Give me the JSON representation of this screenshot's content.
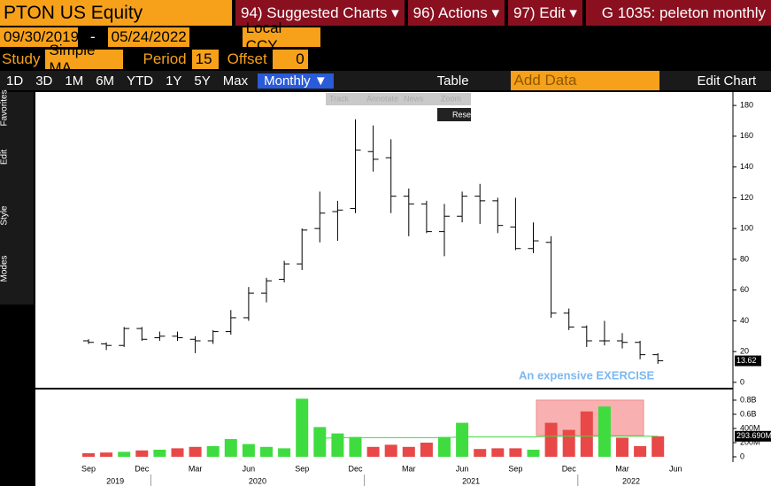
{
  "toolbar": {
    "security": "PTON US Equity",
    "menus": [
      "94) Suggested Charts ▾",
      "96) Actions ▾",
      "97) Edit ▾"
    ],
    "page_title": "G 1035: peleton monthly",
    "start_date": "09/30/2019",
    "end_date": "05/24/2022",
    "currency": "Local CCY",
    "study_label": "Study",
    "study": "Simple MA",
    "period_label": "Period",
    "period": "15",
    "offset_label": "Offset",
    "offset": "0",
    "ranges": [
      "1D",
      "3D",
      "1M",
      "6M",
      "YTD",
      "1Y",
      "5Y",
      "Max"
    ],
    "frequency": "Monthly ▼",
    "table": "Table",
    "add_data": "Add Data",
    "edit_chart": "Edit Chart",
    "side_groups": [
      "Favorites",
      "Edit",
      "Style",
      "Modes"
    ],
    "chart_tools": [
      "Track",
      "Annotate",
      "News",
      "Zoom"
    ],
    "reset": "Reset"
  },
  "chart_data": {
    "type": "ohlc",
    "annotation": "An expensive EXERCISE",
    "categories": [
      "Sep",
      null,
      null,
      "Dec",
      null,
      null,
      "Mar",
      null,
      null,
      "Jun",
      null,
      null,
      "Sep",
      null,
      null,
      "Dec",
      null,
      null,
      "Mar",
      null,
      null,
      "Jun",
      null,
      null,
      "Sep",
      null,
      null,
      "Dec",
      null,
      null,
      "Mar",
      null,
      null,
      "Jun"
    ],
    "years": [
      "2019",
      "2020",
      "2021",
      "2022"
    ],
    "open": [
      27,
      25,
      24,
      35,
      29,
      30,
      28,
      27,
      33,
      42,
      58,
      67,
      77,
      100,
      111,
      113,
      150,
      146,
      121,
      116,
      98,
      108,
      121,
      118,
      101,
      87,
      91,
      45,
      36,
      27,
      27,
      26,
      18,
      null
    ],
    "high": [
      28,
      26,
      36,
      36,
      33,
      33,
      30,
      34,
      47,
      62,
      68,
      79,
      100,
      124,
      118,
      171,
      167,
      158,
      126,
      118,
      116,
      124,
      129,
      120,
      120,
      104,
      95,
      48,
      37,
      40,
      32,
      27,
      19,
      null
    ],
    "low": [
      25,
      21,
      23,
      27,
      27,
      27,
      19,
      25,
      31,
      40,
      52,
      65,
      73,
      91,
      92,
      110,
      137,
      110,
      95,
      97,
      82,
      104,
      103,
      97,
      86,
      84,
      42,
      34,
      23,
      24,
      22,
      15,
      12,
      null
    ],
    "close": [
      26,
      24,
      35,
      28,
      30,
      29,
      27,
      33,
      42,
      58,
      66,
      77,
      99,
      110,
      112,
      151,
      145,
      121,
      116,
      98,
      108,
      121,
      118,
      102,
      87,
      92,
      45,
      36,
      27,
      27,
      26,
      18,
      14,
      null
    ],
    "ylim": [
      -3.5,
      188.7
    ],
    "yticks": [
      0,
      20,
      40,
      60,
      80,
      100,
      120,
      140,
      160,
      180
    ],
    "last_price": "13.62",
    "up_color": "#3fdc3f",
    "down_color": "#e84848",
    "price_color": "#000000",
    "volume": {
      "values": [
        0.05,
        0.06,
        0.07,
        0.09,
        0.1,
        0.12,
        0.14,
        0.15,
        0.25,
        0.18,
        0.14,
        0.12,
        0.82,
        0.42,
        0.33,
        0.28,
        0.14,
        0.17,
        0.14,
        0.2,
        0.28,
        0.48,
        0.11,
        0.12,
        0.12,
        0.1,
        0.48,
        0.38,
        0.64,
        0.71,
        0.27,
        0.15,
        0.29,
        null
      ],
      "ma": [
        null,
        null,
        null,
        null,
        null,
        null,
        null,
        null,
        null,
        null,
        null,
        null,
        null,
        0.26,
        0.27,
        0.27,
        0.27,
        0.27,
        0.27,
        0.27,
        0.27,
        0.28,
        0.28,
        0.28,
        0.28,
        0.28,
        0.29,
        0.29,
        0.29,
        0.29,
        0.29,
        0.29,
        0.29,
        null
      ],
      "ma_color": "#3fdc3f",
      "ylim": [
        -0.075,
        0.95
      ],
      "yticks": [
        {
          "value": 0,
          "label": "0"
        },
        {
          "value": 0.2,
          "label": "200M"
        },
        {
          "value": 0.4,
          "label": "400M"
        },
        {
          "value": 0.6,
          "label": "0.6B"
        },
        {
          "value": 0.8,
          "label": "0.8B"
        }
      ],
      "last_label": "293.690M"
    }
  }
}
